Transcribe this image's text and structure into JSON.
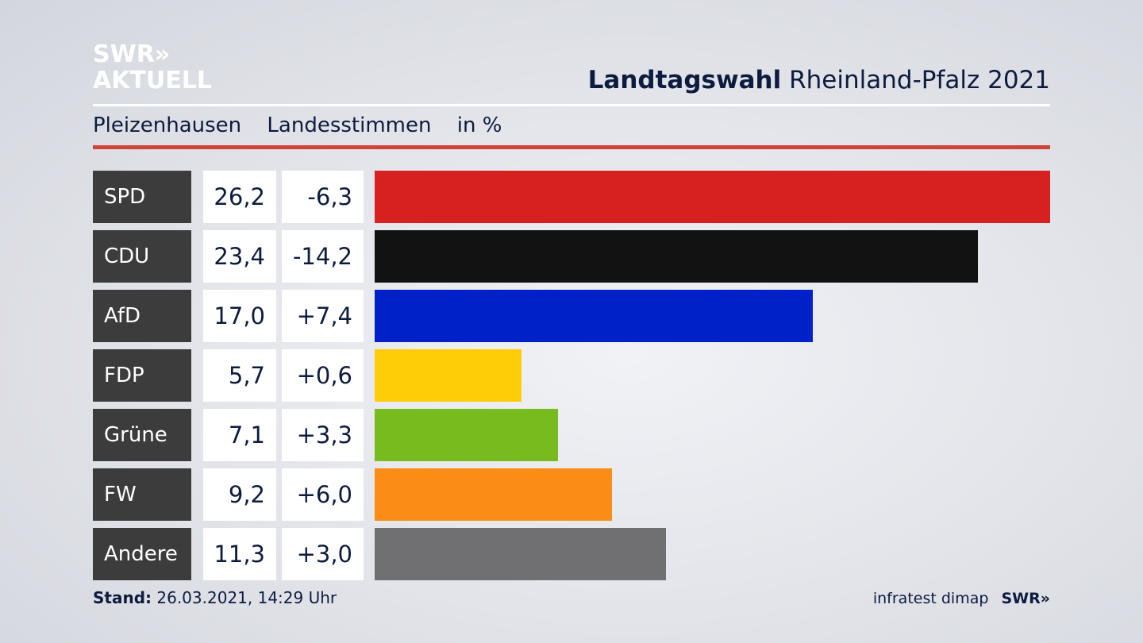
{
  "brand": {
    "logo_line1": "SWR»",
    "logo_line2": "AKTUELL"
  },
  "header": {
    "title_bold": "Landtagswahl",
    "title_rest": "Rheinland-Pfalz 2021"
  },
  "subtitle": {
    "place": "Pleizenhausen",
    "vote_type": "Landesstimmen",
    "unit": "in %"
  },
  "footer": {
    "stand_label": "Stand:",
    "stand_value": "26.03.2021, 14:29 Uhr",
    "source": "infratest dimap",
    "source_logo": "SWR»"
  },
  "chart_data": {
    "type": "bar",
    "orientation": "horizontal",
    "categories": [
      "SPD",
      "CDU",
      "AfD",
      "FDP",
      "Grüne",
      "FW",
      "Andere"
    ],
    "values": [
      26.2,
      23.4,
      17.0,
      5.7,
      7.1,
      9.2,
      11.3
    ],
    "value_labels": [
      "26,2",
      "23,4",
      "17,0",
      "5,7",
      "7,1",
      "9,2",
      "11,3"
    ],
    "changes": [
      -6.3,
      -14.2,
      7.4,
      0.6,
      3.3,
      6.0,
      3.0
    ],
    "change_labels": [
      "-6,3",
      "-14,2",
      "+7,4",
      "+0,6",
      "+3,3",
      "+6,0",
      "+3,0"
    ],
    "colors": [
      "#d72020",
      "#121212",
      "#0021c8",
      "#ffcc08",
      "#78bb1f",
      "#fb8c16",
      "#707073"
    ],
    "title": "Landtagswahl Rheinland-Pfalz 2021",
    "subtitle": "Pleizenhausen Landesstimmen in %",
    "xlim": [
      0,
      26.2
    ],
    "grid": false
  }
}
